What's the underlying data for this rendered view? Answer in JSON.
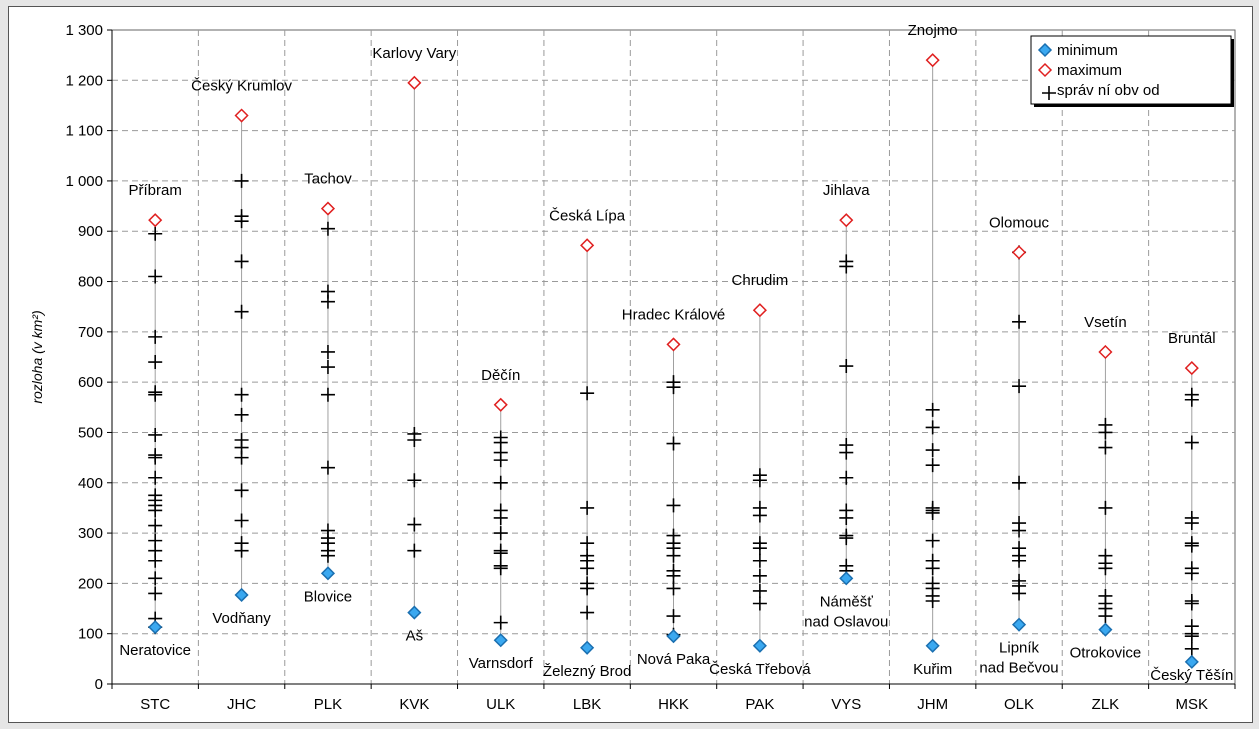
{
  "chart_data": {
    "type": "scatter",
    "ylabel": "rozloha (v km²)",
    "ylim": [
      0,
      1300
    ],
    "yticks": [
      0,
      100,
      200,
      300,
      400,
      500,
      600,
      700,
      800,
      900,
      1000,
      1100,
      1200,
      1300
    ],
    "ytick_labels": [
      "0",
      "100",
      "200",
      "300",
      "400",
      "500",
      "600",
      "700",
      "800",
      "900",
      "1 000",
      "1 100",
      "1 200",
      "1 300"
    ],
    "grid": true,
    "legend_position": "top-right",
    "legend": {
      "minimum": "minimum",
      "maximum": "maximum",
      "obvod": "správ ní obv od"
    },
    "colors": {
      "minimum_fill": "#3aa8f0",
      "minimum_stroke": "#1a6fb0",
      "maximum": "#e02020",
      "marker": "#000000",
      "stem": "#a0a0a0",
      "grid": "#9a9a9a"
    },
    "categories": [
      "STC",
      "JHC",
      "PLK",
      "KVK",
      "ULK",
      "LBK",
      "HKK",
      "PAK",
      "VYS",
      "JHM",
      "OLK",
      "ZLK",
      "MSK"
    ],
    "regions": [
      {
        "code": "STC",
        "min": 113,
        "min_label": [
          "Neratovice"
        ],
        "max": 922,
        "max_label": [
          "Příbram"
        ],
        "values": [
          113,
          130,
          180,
          210,
          245,
          265,
          285,
          315,
          345,
          355,
          365,
          375,
          410,
          450,
          455,
          495,
          575,
          580,
          640,
          690,
          810,
          895
        ]
      },
      {
        "code": "JHC",
        "min": 177,
        "min_label": [
          "Vodňany"
        ],
        "max": 1130,
        "max_label": [
          "Český Krumlov"
        ],
        "values": [
          265,
          280,
          325,
          385,
          450,
          470,
          485,
          535,
          575,
          740,
          840,
          920,
          930,
          1000
        ]
      },
      {
        "code": "PLK",
        "min": 220,
        "min_label": [
          "Blovice"
        ],
        "max": 945,
        "max_label": [
          "Tachov"
        ],
        "values": [
          255,
          265,
          280,
          290,
          305,
          430,
          575,
          630,
          660,
          760,
          780,
          905
        ]
      },
      {
        "code": "KVK",
        "min": 142,
        "min_label": [
          "Aš"
        ],
        "max": 1195,
        "max_label": [
          "Karlovy Vary"
        ],
        "values": [
          265,
          317,
          405,
          485,
          497
        ]
      },
      {
        "code": "ULK",
        "min": 87,
        "min_label": [
          "Varnsdorf"
        ],
        "max": 555,
        "max_label": [
          "Děčín"
        ],
        "values": [
          122,
          230,
          235,
          260,
          265,
          300,
          330,
          345,
          400,
          445,
          460,
          480,
          490
        ]
      },
      {
        "code": "LBK",
        "min": 72,
        "min_label": [
          "Železný Brod"
        ],
        "max": 872,
        "max_label": [
          "Česká Lípa"
        ],
        "values": [
          142,
          190,
          200,
          230,
          245,
          255,
          280,
          350,
          578
        ]
      },
      {
        "code": "HKK",
        "min": 95,
        "min_label": [
          "Nová Paka"
        ],
        "max": 675,
        "max_label": [
          "Hradec Králové"
        ],
        "values": [
          98,
          135,
          190,
          215,
          225,
          255,
          270,
          280,
          295,
          355,
          478,
          590,
          600
        ]
      },
      {
        "code": "PAK",
        "min": 76,
        "min_label": [
          "Česká Třebová"
        ],
        "max": 743,
        "max_label": [
          "Chrudim"
        ],
        "values": [
          160,
          185,
          215,
          245,
          270,
          280,
          335,
          350,
          405,
          415
        ]
      },
      {
        "code": "VYS",
        "min": 210,
        "min_label": [
          "Náměšť",
          "nad Oslavou"
        ],
        "max": 922,
        "max_label": [
          "Jihlava"
        ],
        "values": [
          225,
          235,
          290,
          295,
          330,
          345,
          410,
          460,
          475,
          632,
          830,
          840
        ]
      },
      {
        "code": "JHM",
        "min": 76,
        "min_label": [
          "Kuřim"
        ],
        "max": 1240,
        "max_label": [
          "Znojmo"
        ],
        "values": [
          165,
          175,
          190,
          200,
          230,
          245,
          285,
          340,
          345,
          350,
          435,
          465,
          510,
          545
        ]
      },
      {
        "code": "OLK",
        "min": 118,
        "min_label": [
          "Lipník",
          "nad Bečvou"
        ],
        "max": 858,
        "max_label": [
          "Olomouc"
        ],
        "values": [
          180,
          195,
          205,
          245,
          255,
          270,
          305,
          320,
          400,
          592,
          720,
          858
        ]
      },
      {
        "code": "ZLK",
        "min": 108,
        "min_label": [
          "Otrokovice"
        ],
        "max": 660,
        "max_label": [
          "Vsetín"
        ],
        "values": [
          135,
          150,
          160,
          175,
          230,
          240,
          255,
          350,
          470,
          500,
          515
        ]
      },
      {
        "code": "MSK",
        "min": 44,
        "min_label": [
          "Český Těšín"
        ],
        "max": 628,
        "max_label": [
          "Bruntál"
        ],
        "values": [
          70,
          95,
          100,
          115,
          160,
          165,
          220,
          230,
          275,
          280,
          320,
          330,
          480,
          565,
          575
        ]
      }
    ]
  }
}
